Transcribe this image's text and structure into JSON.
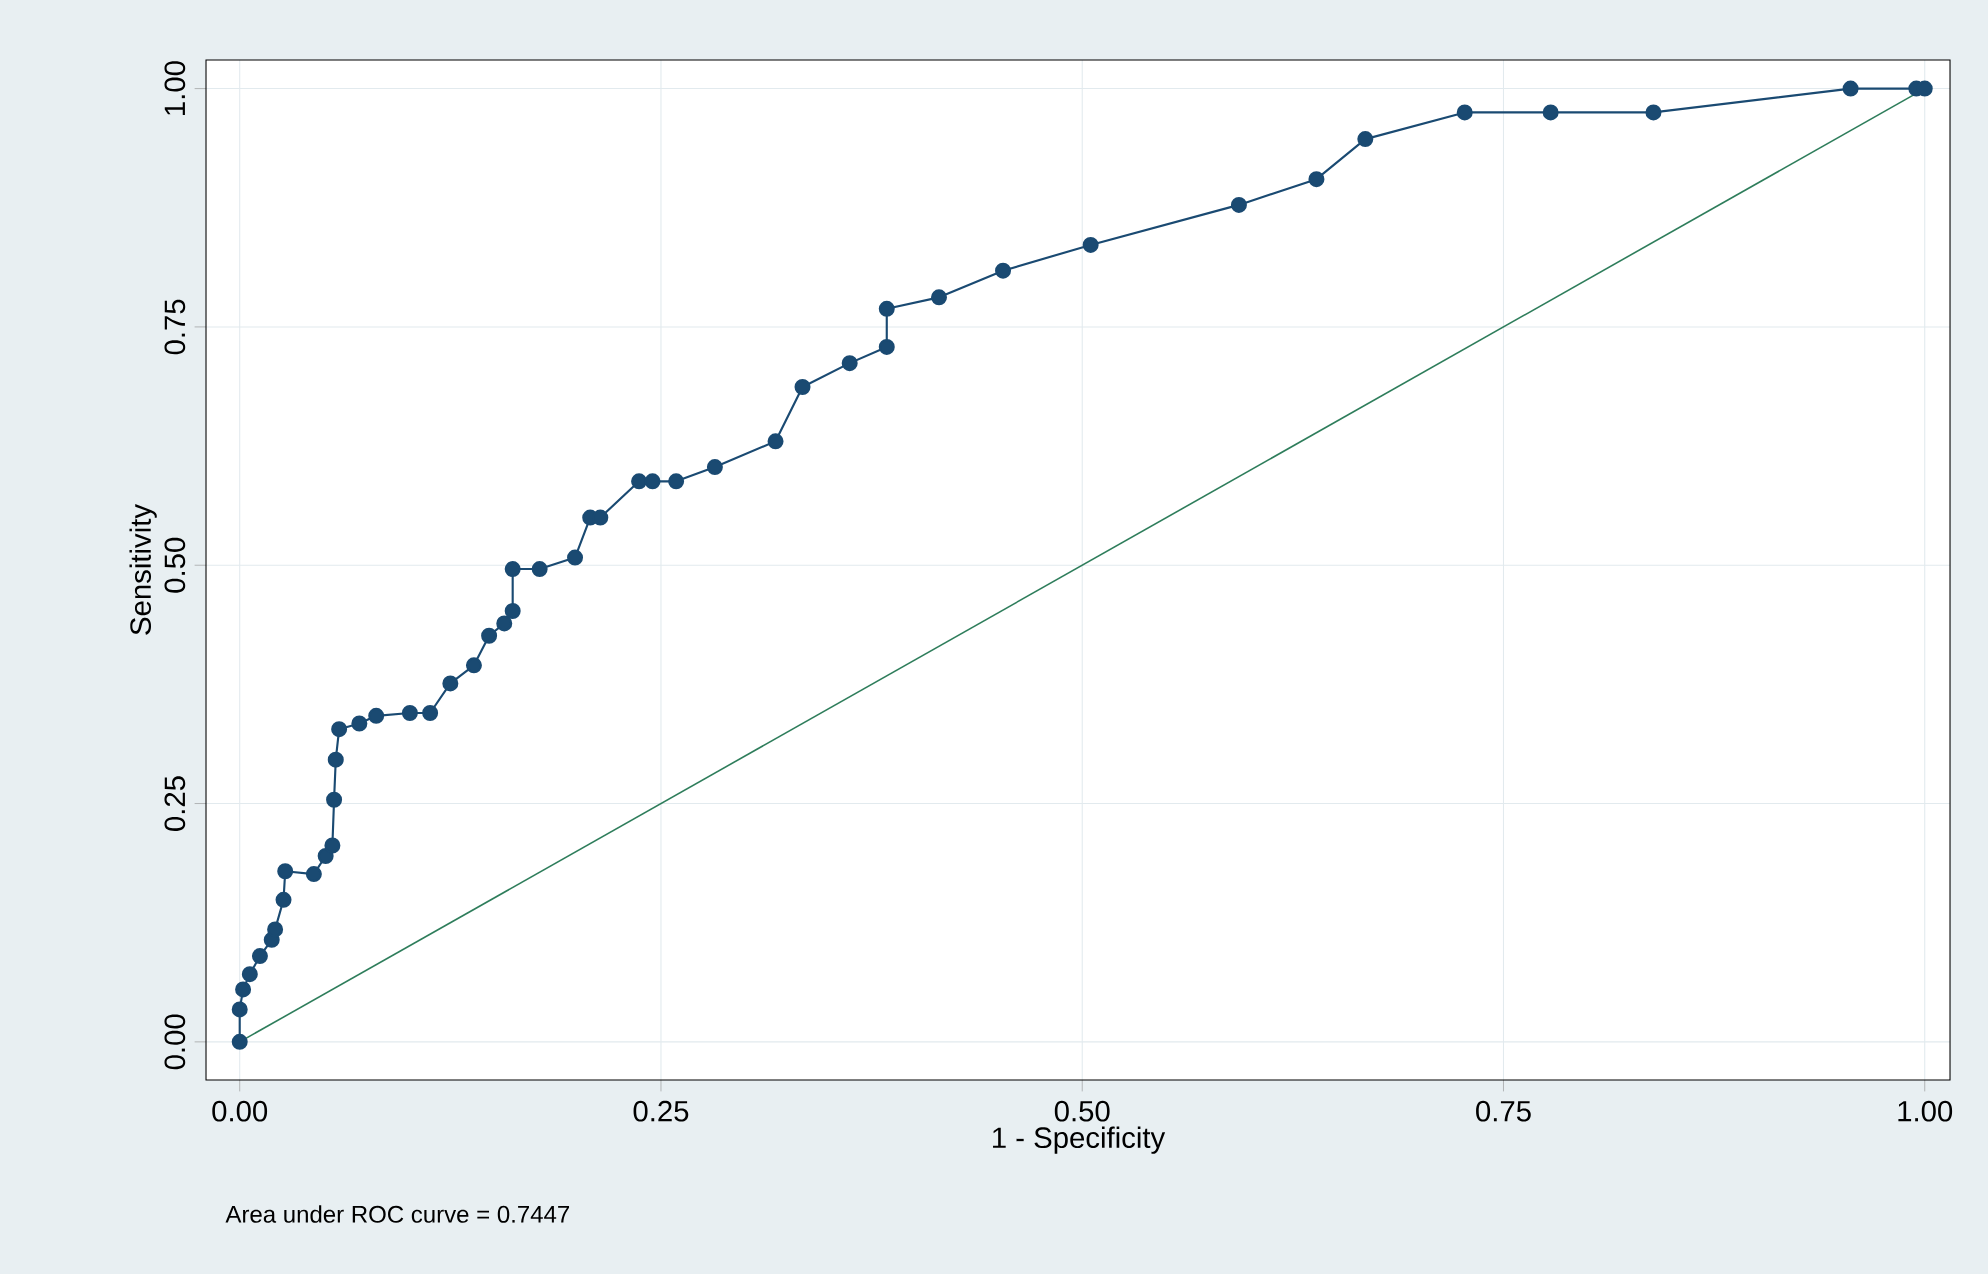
{
  "chart_data": {
    "type": "line",
    "xlabel": "1 - Specificity",
    "ylabel": "Sensitivity",
    "annotations": [
      "Area under ROC curve = 0.7447"
    ],
    "xlim": [
      -0.02,
      1.015
    ],
    "ylim": [
      -0.04,
      1.03
    ],
    "xticks": [
      {
        "value": 0,
        "label": "0.00"
      },
      {
        "value": 0.25,
        "label": "0.25"
      },
      {
        "value": 0.5,
        "label": "0.50"
      },
      {
        "value": 0.75,
        "label": "0.75"
      },
      {
        "value": 1,
        "label": "1.00"
      }
    ],
    "yticks": [
      {
        "value": 0,
        "label": "0.00"
      },
      {
        "value": 0.25,
        "label": "0.25"
      },
      {
        "value": 0.5,
        "label": "0.50"
      },
      {
        "value": 0.75,
        "label": "0.75"
      },
      {
        "value": 1,
        "label": "1.00"
      }
    ],
    "grid": true,
    "series": [
      {
        "color": "#1a4a72",
        "marker": "circle",
        "line_style": "solid",
        "x": [
          0,
          0,
          0.002,
          0.006,
          0.012,
          0.019,
          0.021,
          0.026,
          0.027,
          0.044,
          0.051,
          0.055,
          0.056,
          0.057,
          0.059,
          0.071,
          0.081,
          0.101,
          0.113,
          0.125,
          0.139,
          0.148,
          0.157,
          0.162,
          0.162,
          0.178,
          0.199,
          0.208,
          0.214,
          0.237,
          0.245,
          0.259,
          0.282,
          0.318,
          0.334,
          0.362,
          0.384,
          0.384,
          0.415,
          0.453,
          0.505,
          0.593,
          0.639,
          0.668,
          0.727,
          0.778,
          0.839,
          0.956,
          0.995,
          1
        ],
        "values": [
          0,
          0.034,
          0.055,
          0.071,
          0.09,
          0.107,
          0.118,
          0.149,
          0.179,
          0.176,
          0.195,
          0.206,
          0.254,
          0.296,
          0.328,
          0.334,
          0.342,
          0.345,
          0.345,
          0.376,
          0.395,
          0.426,
          0.439,
          0.452,
          0.496,
          0.496,
          0.508,
          0.55,
          0.55,
          0.588,
          0.588,
          0.588,
          0.603,
          0.63,
          0.687,
          0.712,
          0.729,
          0.769,
          0.781,
          0.809,
          0.836,
          0.878,
          0.905,
          0.947,
          0.975,
          0.975,
          0.975,
          1,
          1,
          1
        ]
      },
      {
        "color": "#2e7d5b",
        "marker": "none",
        "line_style": "solid",
        "x": [
          0,
          1
        ],
        "values": [
          0,
          1
        ]
      }
    ]
  }
}
